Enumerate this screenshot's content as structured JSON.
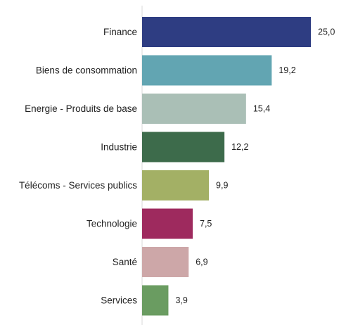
{
  "chart_data": {
    "type": "bar",
    "orientation": "horizontal",
    "categories": [
      "Finance",
      "Biens de consommation",
      "Energie - Produits de base",
      "Industrie",
      "Télécoms - Services publics",
      "Technologie",
      "Santé",
      "Services"
    ],
    "values": [
      25.0,
      19.2,
      15.4,
      12.2,
      9.9,
      7.5,
      6.9,
      3.9
    ],
    "value_labels": [
      "25,0",
      "19,2",
      "15,4",
      "12,2",
      "9,9",
      "7,5",
      "6,9",
      "3,9"
    ],
    "colors": [
      "#2e3d82",
      "#62a5b2",
      "#aabfb6",
      "#3d6b4b",
      "#a3b065",
      "#9e2a5e",
      "#cda7a8",
      "#6a9c61"
    ],
    "axis_line_color": "#d9d9d9",
    "xlim": [
      0,
      25.0
    ],
    "grid": false,
    "legend": "none"
  }
}
